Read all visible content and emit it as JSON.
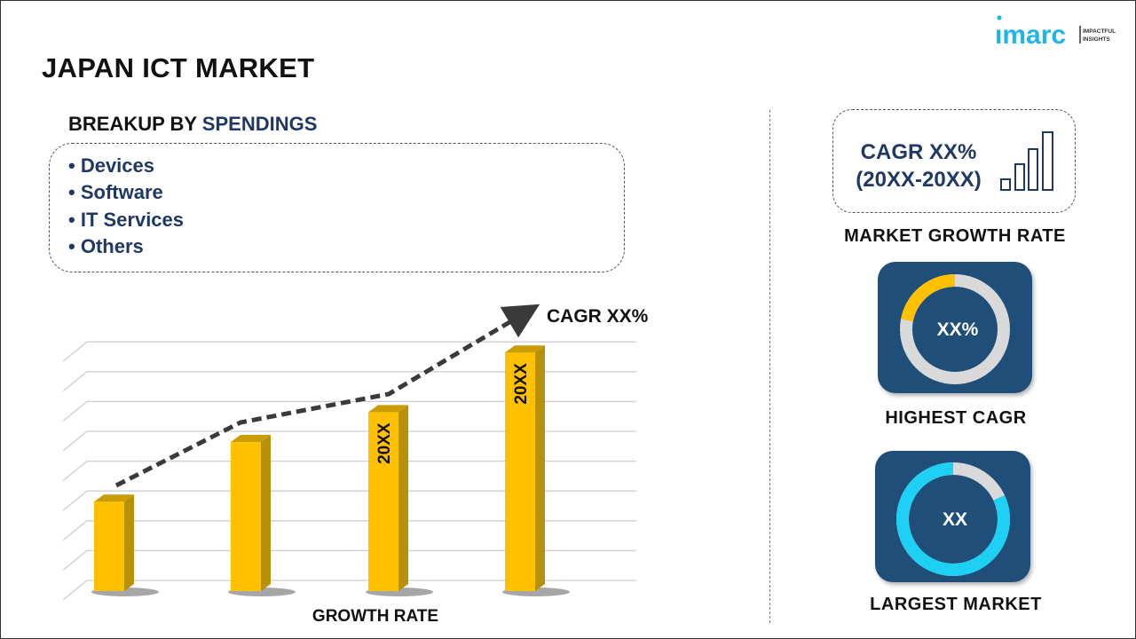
{
  "header": {
    "title": "JAPAN ICT MARKET",
    "logo_text": "imarc",
    "logo_tagline": [
      "IMPACTFUL",
      "INSIGHTS"
    ]
  },
  "breakup": {
    "label_prefix": "BREAKUP BY",
    "label_highlight": "SPENDINGS",
    "items": [
      "Devices",
      "Software",
      "IT Services",
      "Others"
    ]
  },
  "growth_card": {
    "cagr": "CAGR XX%",
    "period": "(20XX-20XX)",
    "caption": "MARKET GROWTH RATE",
    "icon": "bar-chart-icon"
  },
  "highest_cagr": {
    "value": "XX%",
    "caption": "HIGHEST CAGR",
    "fill_fraction": 0.22,
    "fill_color": "#ffc000"
  },
  "largest_market": {
    "value": "XX",
    "caption": "LARGEST MARKET",
    "fill_fraction": 0.82,
    "fill_color": "#1fd0f5"
  },
  "colors": {
    "navy": "#1f3864",
    "card": "#1f4e79",
    "bar": "#ffc000",
    "bar_side": "#b8900a"
  },
  "chart_data": {
    "type": "bar",
    "categories": [
      "",
      "",
      "",
      ""
    ],
    "bar_labels": [
      "",
      "",
      "20XX",
      "20XX"
    ],
    "values": [
      3,
      5,
      6,
      8
    ],
    "xlabel": "GROWTH RATE",
    "ylabel": "",
    "ylim": [
      0,
      8.4
    ],
    "grid": true,
    "trend_annotation": "CAGR XX%",
    "trend_line": "dashed arrow rising over bars"
  }
}
